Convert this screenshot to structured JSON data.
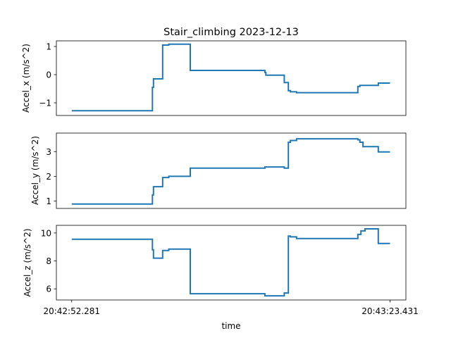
{
  "chart_data": {
    "type": "line",
    "title": "Stair_climbing  2023-12-13",
    "xlabel": "time",
    "x_ticks": [
      {
        "seconds": 0,
        "label": "20:42:52.281"
      },
      {
        "seconds": 31.15,
        "label": "20:43:23.431"
      }
    ],
    "xlim": [
      -1.5,
      32.7
    ],
    "grid": false,
    "color": "#1f77b4",
    "panels": [
      {
        "ylabel": "Accel_x  (m/s^2)",
        "ylim": [
          -1.45,
          1.2
        ],
        "yticks": [
          -1,
          0,
          1
        ],
        "series": {
          "x": [
            0,
            7.9,
            7.9,
            8.0,
            8.0,
            8.9,
            8.9,
            9.5,
            9.5,
            11.6,
            11.6,
            18.9,
            18.9,
            19.0,
            19.0,
            20.8,
            20.8,
            21.2,
            21.2,
            21.4,
            21.4,
            22.0,
            22.0,
            28.0,
            28.0,
            28.2,
            28.2,
            30.0,
            30.0,
            31.15
          ],
          "y": [
            -1.28,
            -1.28,
            -0.45,
            -0.45,
            -0.15,
            -0.15,
            1.05,
            1.05,
            1.08,
            1.08,
            0.15,
            0.15,
            0.08,
            0.08,
            -0.02,
            -0.02,
            -0.28,
            -0.28,
            -0.57,
            -0.57,
            -0.61,
            -0.61,
            -0.64,
            -0.64,
            -0.42,
            -0.42,
            -0.38,
            -0.38,
            -0.3,
            -0.3
          ]
        }
      },
      {
        "ylabel": "Accel_y  (m/s^2)",
        "ylim": [
          0.7,
          3.75
        ],
        "yticks": [
          1,
          2,
          3
        ],
        "series": {
          "x": [
            0,
            7.9,
            7.9,
            8.0,
            8.0,
            8.9,
            8.9,
            9.5,
            9.5,
            11.6,
            11.6,
            18.9,
            18.9,
            20.8,
            20.8,
            21.2,
            21.2,
            21.4,
            21.4,
            22.0,
            22.0,
            28.0,
            28.0,
            28.2,
            28.2,
            28.5,
            28.5,
            30.0,
            30.0,
            31.15
          ],
          "y": [
            0.88,
            0.88,
            1.25,
            1.25,
            1.58,
            1.58,
            1.95,
            1.95,
            2.0,
            2.0,
            2.33,
            2.33,
            2.38,
            2.38,
            2.33,
            2.33,
            3.38,
            3.38,
            3.45,
            3.45,
            3.52,
            3.52,
            3.48,
            3.48,
            3.38,
            3.38,
            3.2,
            3.2,
            2.99,
            2.99
          ]
        }
      },
      {
        "ylabel": "Accel_z  (m/s^2)",
        "ylim": [
          5.2,
          10.55
        ],
        "yticks": [
          6,
          8,
          10
        ],
        "series": {
          "x": [
            0,
            7.9,
            7.9,
            8.0,
            8.0,
            8.9,
            8.9,
            9.5,
            9.5,
            11.6,
            11.6,
            18.9,
            18.9,
            20.8,
            20.8,
            21.2,
            21.2,
            21.4,
            21.4,
            22.0,
            22.0,
            28.0,
            28.0,
            28.3,
            28.3,
            28.7,
            28.7,
            30.0,
            30.0,
            31.15
          ],
          "y": [
            9.55,
            9.55,
            8.8,
            8.8,
            8.2,
            8.2,
            8.75,
            8.75,
            8.85,
            8.85,
            5.65,
            5.65,
            5.5,
            5.5,
            5.7,
            5.7,
            9.78,
            9.78,
            9.72,
            9.72,
            9.6,
            9.6,
            9.9,
            9.9,
            10.15,
            10.15,
            10.3,
            10.3,
            9.25,
            9.25
          ]
        }
      }
    ]
  }
}
